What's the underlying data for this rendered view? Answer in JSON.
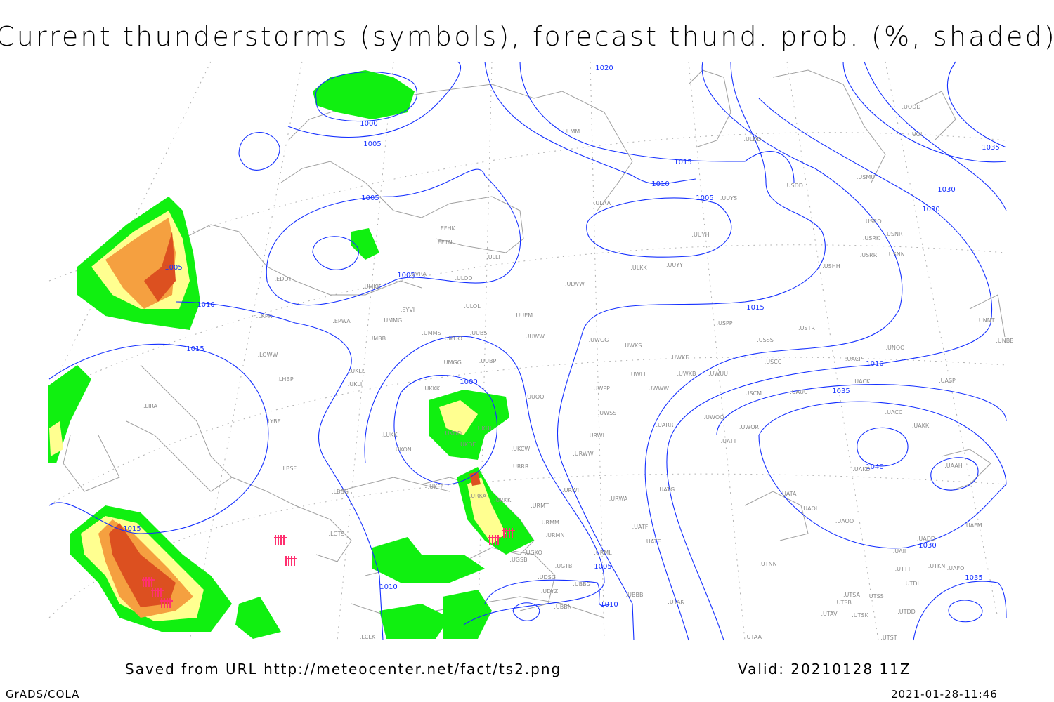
{
  "title": "Current thunderstorms (symbols), forecast thund. prob. (%, shaded)",
  "footer": {
    "source": "Saved from URL http://meteocenter.net/fact/ts2.png",
    "valid": "Valid: 20210128 11Z",
    "software": "GrADS/COLA",
    "timestamp": "2021-01-28-11:46"
  },
  "colors": {
    "isobar": "#1530ff",
    "coastline": "#a0a0a0",
    "prob_low": "#10f010",
    "prob_mid": "#ffff90",
    "prob_high": "#f5a040",
    "prob_max": "#dc5020",
    "thunderstorm_symbol": "#ff3070"
  },
  "isobar_labels": [
    "1000",
    "1005",
    "1005",
    "1005",
    "1005",
    "1010",
    "1010",
    "1010",
    "1015",
    "1015",
    "1015",
    "1020",
    "1030",
    "1030",
    "1030",
    "1035",
    "1035",
    "1035",
    "1040",
    "1000",
    "1010",
    "1005",
    "1015"
  ],
  "stations": [
    "UODD",
    "UOII",
    "ULDD",
    "USDD",
    "USMU",
    "ULMM",
    "ULAA",
    "UUYS",
    "UUYH",
    "USRO",
    "USRK",
    "USNR",
    "USRR",
    "USNN",
    "USHH",
    "EFHK",
    "EETN",
    "ULLI",
    "UUYY",
    "ULKK",
    "EDDT",
    "UMKK",
    "EVRA",
    "ULOD",
    "ULWW",
    "ULOL",
    "EYVI",
    "UUEM",
    "LKPR",
    "EPWA",
    "UMMG",
    "USPP",
    "USTR",
    "UNNT",
    "UNBB",
    "UMMS",
    "UMOO",
    "UUBS",
    "UUWW",
    "UWGG",
    "UWKS",
    "USSS",
    "UNOO",
    "UMBB",
    "LOWW",
    "UWKE",
    "USCC",
    "UACP",
    "UUBP",
    "UMGG",
    "LHBP",
    "UKLL",
    "UKLI",
    "UWLL",
    "UWKB",
    "UWUU",
    "UACK",
    "UASP",
    "UKKK",
    "UUOO",
    "UWPP",
    "UWWW",
    "USCM",
    "UAUU",
    "LIRA",
    "UKHH",
    "UWSS",
    "UACC",
    "UAKK",
    "LYBE",
    "UWOO",
    "UARR",
    "UWOR",
    "UATT",
    "LUKK",
    "UKDD",
    "URWI",
    "UKON",
    "UKDE",
    "UKCW",
    "URWW",
    "URRR",
    "UAKD",
    "UAAH",
    "LBSF",
    "UATG",
    "URWI",
    "LBBG",
    "UKFF",
    "URKA",
    "URKK",
    "URMT",
    "URWA",
    "UATA",
    "UAOL",
    "UAOO",
    "UAFM",
    "URMM",
    "UATF",
    "URMN",
    "LGTS",
    "UATE",
    "UADD",
    "UAII",
    "UGKO",
    "UGSB",
    "URML",
    "UGTB",
    "UTTT",
    "UTKN",
    "UAFO",
    "UTNN",
    "UDSG",
    "UBBG",
    "UDYZ",
    "UTDL",
    "UBBB",
    "UTSA",
    "UTSS",
    "UTSB",
    "UTAK",
    "UBBN",
    "UTDD",
    "UTAV",
    "UTSK",
    "UTAA",
    "UTST",
    "LCLK"
  ]
}
